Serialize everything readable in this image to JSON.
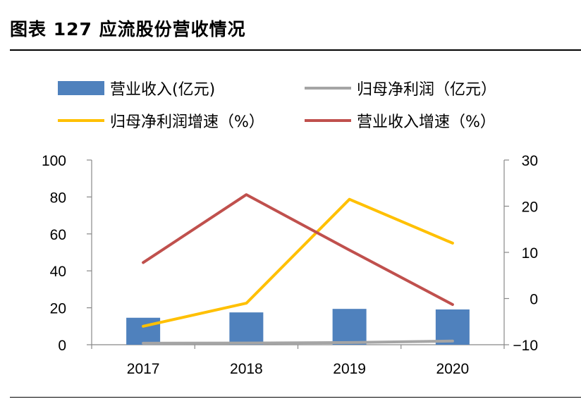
{
  "header": {
    "title": "图表 127 应流股份营收情况"
  },
  "chart_data": {
    "type": "bar",
    "categories": [
      "2017",
      "2018",
      "2019",
      "2020"
    ],
    "series": [
      {
        "name": "营业收入(亿元)",
        "kind": "bar",
        "axis": "left",
        "color": "#4f81bd",
        "values": [
          14.6,
          17.5,
          19.4,
          19.1
        ]
      },
      {
        "name": "归母净利润（亿元）",
        "kind": "line",
        "axis": "left",
        "color": "#a5a5a5",
        "values": [
          0.8,
          0.9,
          1.2,
          2.0
        ]
      },
      {
        "name": "归母净利润增速（%）",
        "kind": "line",
        "axis": "right",
        "color": "#ffc000",
        "values": [
          -6,
          -1,
          21.5,
          12
        ]
      },
      {
        "name": "营业收入增速（%）",
        "kind": "line",
        "axis": "right",
        "color": "#c0504d",
        "values": [
          7.8,
          22.5,
          10.5,
          -1.3
        ]
      }
    ],
    "y_left": {
      "min": 0,
      "max": 100,
      "ticks": [
        "100",
        "80",
        "60",
        "40",
        "20",
        "0"
      ]
    },
    "y_right": {
      "min": -10,
      "max": 30,
      "ticks": [
        "30",
        "20",
        "10",
        "0",
        "−10"
      ]
    },
    "legend_position": "top",
    "grid": false
  }
}
